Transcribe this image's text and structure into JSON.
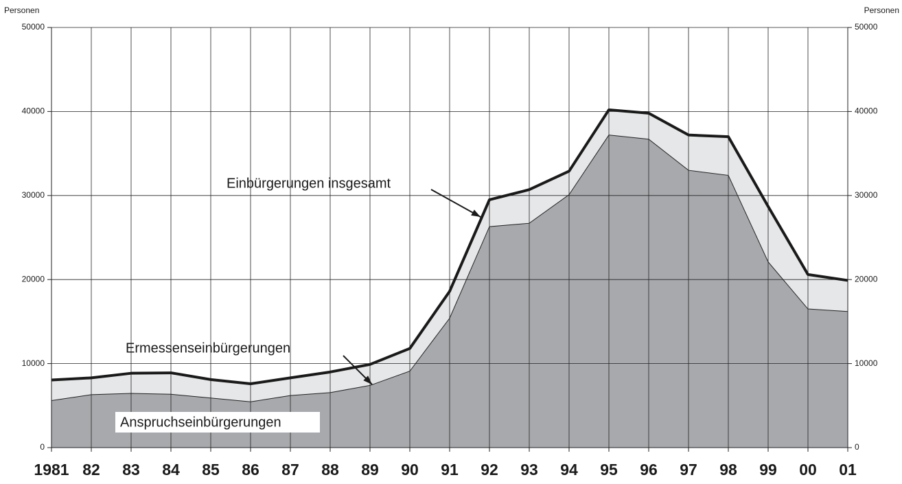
{
  "chart_data": {
    "type": "stacked_area",
    "y_label": "Personen",
    "y2_label": "Personen",
    "categories": [
      "1981",
      "82",
      "83",
      "84",
      "85",
      "86",
      "87",
      "88",
      "89",
      "90",
      "91",
      "92",
      "93",
      "94",
      "95",
      "96",
      "97",
      "98",
      "99",
      "00",
      "01"
    ],
    "series": [
      {
        "name": "Anspruchseinbürgerungen",
        "color": "#a7a9ac",
        "values": [
          5600,
          6300,
          6450,
          6350,
          5900,
          5450,
          6200,
          6550,
          7400,
          9100,
          15400,
          26300,
          26700,
          30100,
          37200,
          36700,
          33000,
          32400,
          22100,
          16500,
          16200
        ]
      },
      {
        "name": "Ermessenseinbürgerungen",
        "color": "#e6e7e8",
        "values": [
          2450,
          2000,
          2400,
          2550,
          2200,
          2150,
          2100,
          2450,
          2500,
          2700,
          3200,
          3200,
          4000,
          2800,
          3000,
          3100,
          4200,
          4600,
          6600,
          4100,
          3700
        ]
      }
    ],
    "total_label": "Einbürgerungen insgesamt",
    "total_color": "#1a1a1a",
    "ylim": [
      0,
      50000
    ],
    "yticks": [
      0,
      10000,
      20000,
      30000,
      40000,
      50000
    ],
    "y2lim": [
      0,
      50000
    ],
    "y2ticks": [
      0,
      10000,
      20000,
      30000,
      40000,
      50000
    ],
    "grid": true
  }
}
